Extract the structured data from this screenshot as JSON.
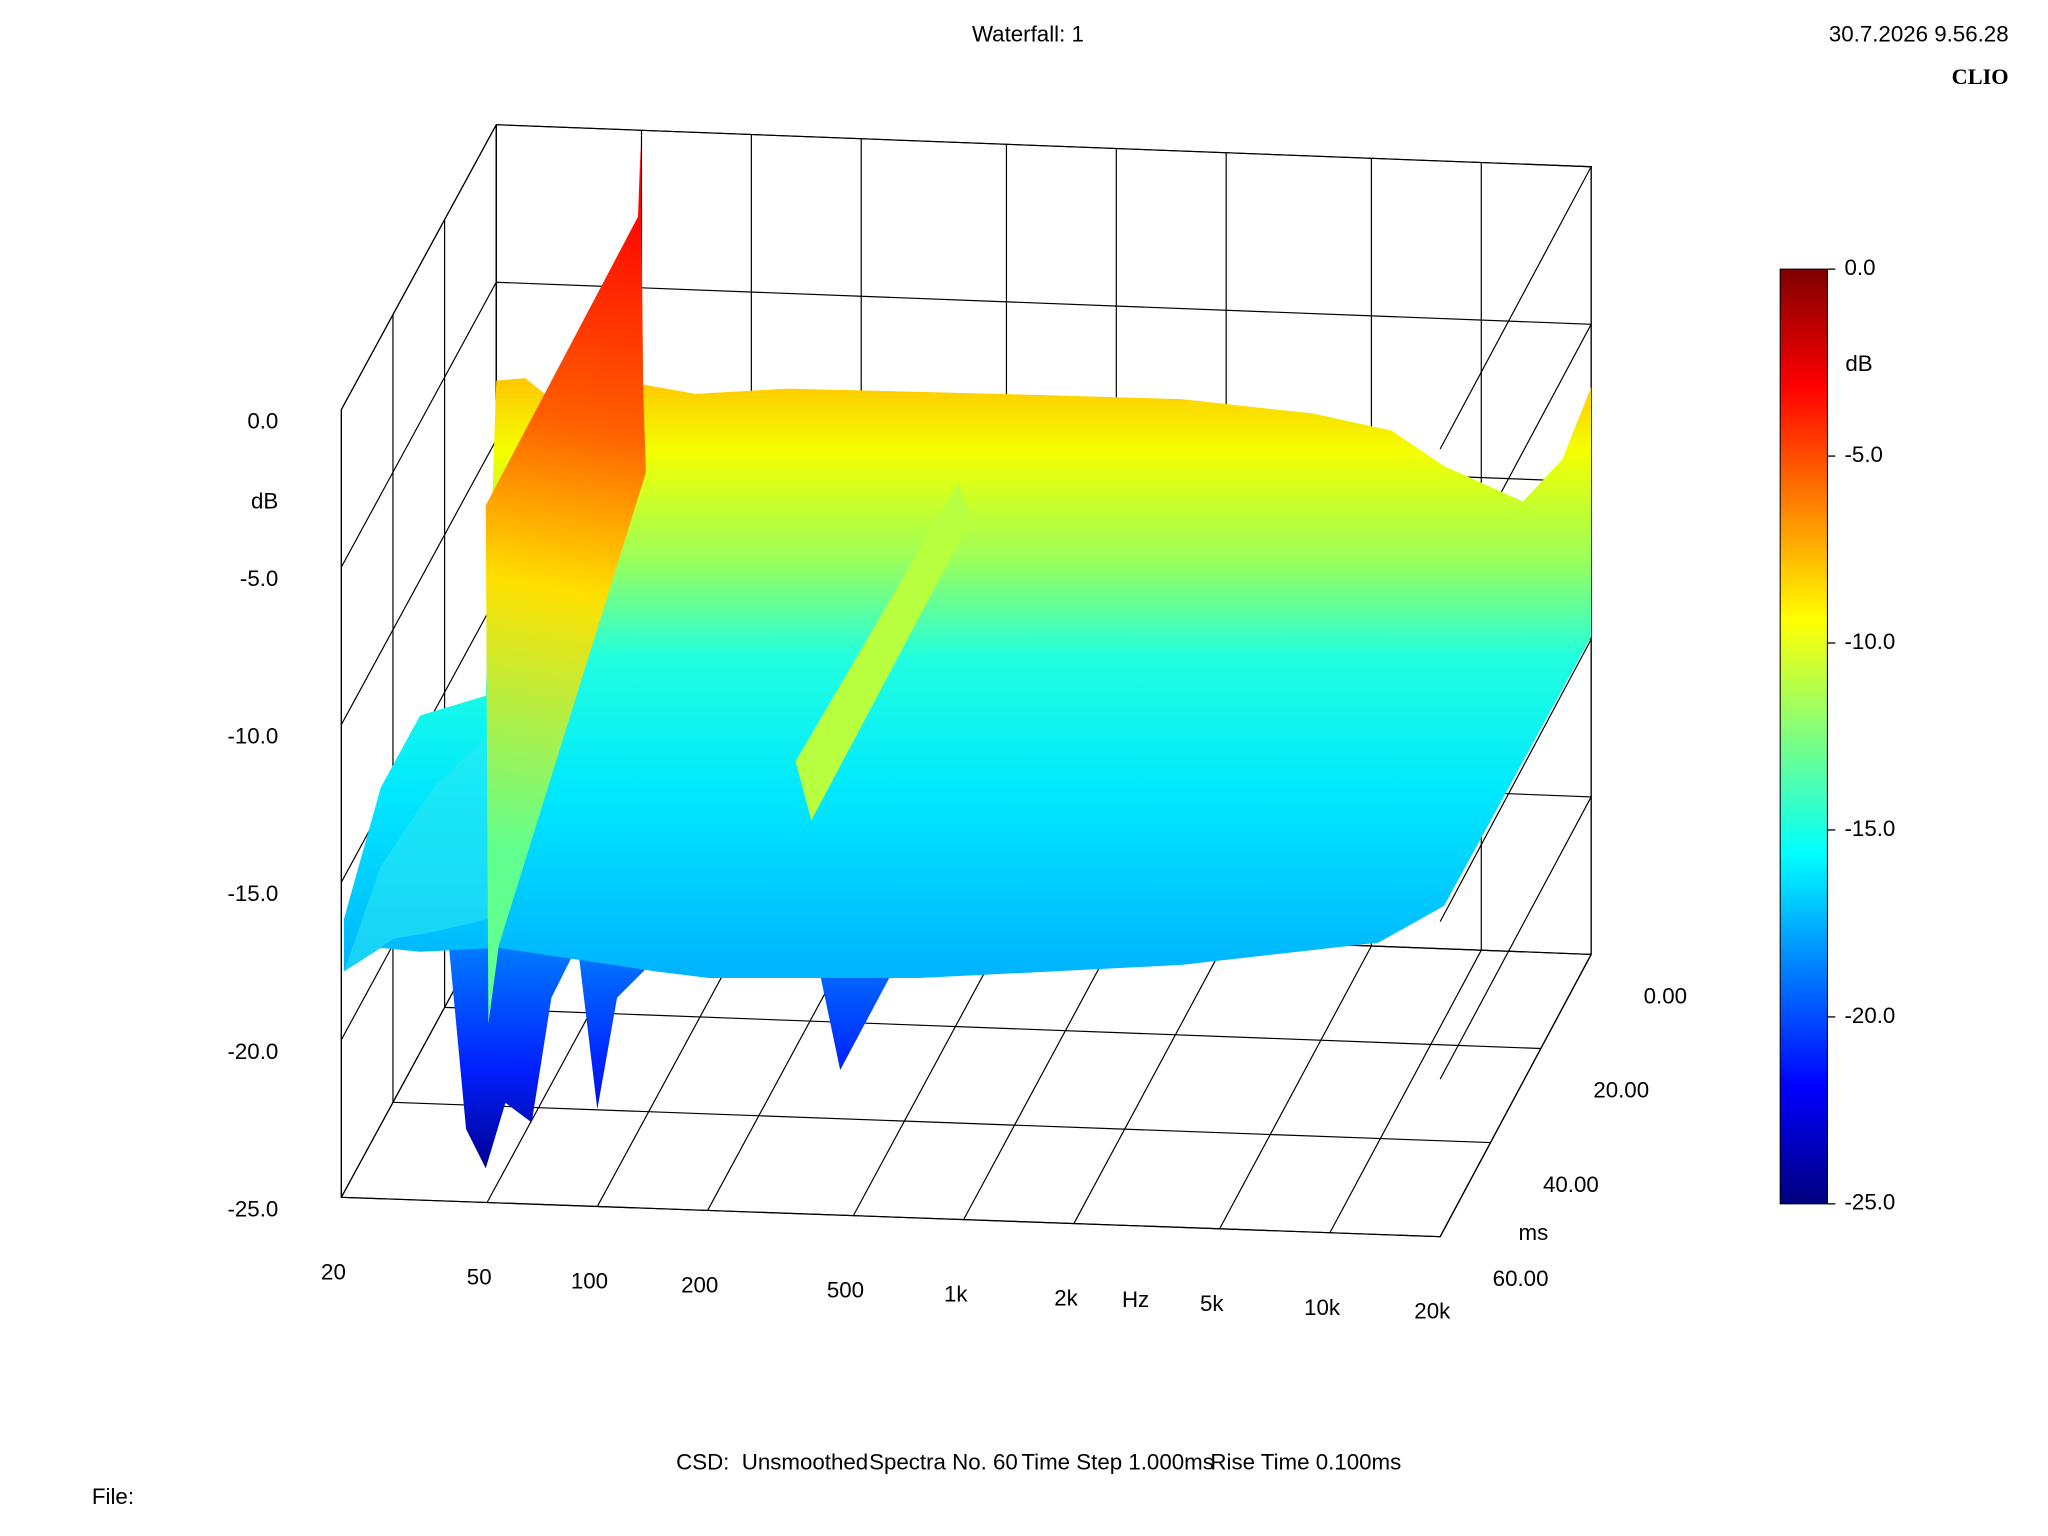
{
  "chart_data": {
    "type": "waterfall",
    "title": "Waterfall: 1",
    "timestamp": "30.7.2026 9.56.28",
    "brand": "CLIO",
    "x_label": "Hz",
    "y_label": "dB",
    "z_label": "ms",
    "xscale": "log",
    "xlim": [
      20,
      20000
    ],
    "xticks": [
      20,
      50,
      100,
      200,
      500,
      {
        "value": 1000,
        "label": "1k"
      },
      {
        "value": 2000,
        "label": "2k"
      },
      {
        "value": 5000,
        "label": "5k"
      },
      {
        "value": 10000,
        "label": "10k"
      },
      {
        "value": 20000,
        "label": "20k"
      }
    ],
    "ylim": [
      -25,
      0
    ],
    "yticks": [
      {
        "value": 0,
        "label": "0.0"
      },
      {
        "value": -5,
        "label": "-5.0"
      },
      {
        "value": -10,
        "label": "-10.0"
      },
      {
        "value": -15,
        "label": "-15.0"
      },
      {
        "value": -20,
        "label": "-20.0"
      },
      {
        "value": -25,
        "label": "-25.0"
      }
    ],
    "zlim": [
      0,
      60
    ],
    "zticks": [
      {
        "value": 0,
        "label": "0.00"
      },
      {
        "value": 20,
        "label": "20.00"
      },
      {
        "value": 40,
        "label": "40.00"
      },
      {
        "value": 60,
        "label": "60.00"
      }
    ],
    "grid": true,
    "colorbar": {
      "label": "dB",
      "lim": [
        -25,
        0
      ],
      "ticks": [
        {
          "value": 0,
          "label": "0.0"
        },
        {
          "value": -5,
          "label": "-5.0"
        },
        {
          "value": -10,
          "label": "-10.0"
        },
        {
          "value": -15,
          "label": "-15.0"
        },
        {
          "value": -20,
          "label": "-20.0"
        },
        {
          "value": -25,
          "label": "-25.0"
        }
      ],
      "colors": [
        "#00007f",
        "#0000ff",
        "#007fff",
        "#00ffff",
        "#7fff7f",
        "#ffff00",
        "#ff7f00",
        "#ff0000",
        "#7f0000"
      ]
    },
    "settings": [
      "CSD:",
      "Unsmoothed",
      "Spectra No. 60",
      "Time Step 1.000ms",
      "Rise Time 0.100ms"
    ],
    "file_label": "File:"
  }
}
